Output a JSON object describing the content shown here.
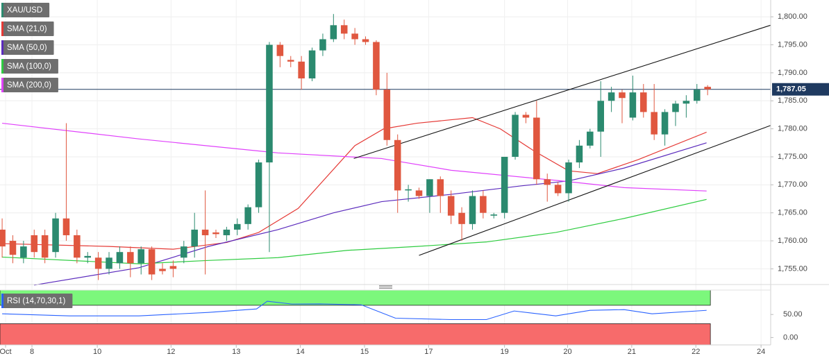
{
  "chart_data": {
    "type": "candlestick",
    "xlim": [
      -0.2,
      71.9
    ],
    "xticks": [
      {
        "value": 0.32,
        "label": "Oct"
      },
      {
        "value": 2.79,
        "label": "8"
      },
      {
        "value": 8.9,
        "label": "10"
      },
      {
        "value": 15.8,
        "label": "12"
      },
      {
        "value": 21.9,
        "label": "13"
      },
      {
        "value": 27.9,
        "label": "14"
      },
      {
        "value": 33.9,
        "label": "15"
      },
      {
        "value": 39.9,
        "label": "17"
      },
      {
        "value": 47.0,
        "label": "19"
      },
      {
        "value": 52.9,
        "label": "20"
      },
      {
        "value": 58.9,
        "label": "21"
      },
      {
        "value": 64.9,
        "label": "22"
      },
      {
        "value": 71.0,
        "label": "24"
      }
    ],
    "ylim": [
      1752.2,
      1803
    ],
    "yticks": [
      {
        "value": 1755,
        "label": "1,755.00"
      },
      {
        "value": 1760,
        "label": "1,760.00"
      },
      {
        "value": 1765,
        "label": "1,765.00"
      },
      {
        "value": 1770,
        "label": "1,770.00"
      },
      {
        "value": 1775,
        "label": "1,775.00"
      },
      {
        "value": 1780,
        "label": "1,780.00"
      },
      {
        "value": 1785,
        "label": "1,785.00"
      },
      {
        "value": 1790,
        "label": "1,790.00"
      },
      {
        "value": 1795,
        "label": "1,795.00"
      },
      {
        "value": 1800,
        "label": "1,800.00"
      }
    ],
    "grid": true,
    "candles": {
      "name": "XAU/USD",
      "color": "#2b8a6f",
      "up_color": "#2b8a6f",
      "down_color": "#e0573f",
      "x": [
        0,
        1,
        2,
        3,
        4,
        5,
        6,
        7,
        8,
        9,
        10,
        11,
        12,
        13,
        14,
        15,
        16,
        17,
        18,
        19,
        20,
        21,
        22,
        23,
        24,
        25,
        26,
        27,
        28,
        29,
        30,
        31,
        32,
        33,
        34,
        35,
        36,
        37,
        38,
        39,
        40,
        41,
        42,
        43,
        44,
        45,
        46,
        47,
        48,
        49,
        50,
        51,
        52,
        53,
        54,
        55,
        56,
        57,
        58,
        59,
        60,
        61,
        62,
        63,
        64,
        65,
        66
      ],
      "open": [
        1762,
        1760,
        1757,
        1761,
        1761,
        1758,
        1764,
        1761,
        1757,
        1757,
        1755,
        1756,
        1758,
        1756,
        1758.5,
        1755,
        1755.5,
        1757,
        1759,
        1762,
        1761.5,
        1761,
        1762,
        1763,
        1766,
        1774,
        1795,
        1792.3,
        1792,
        1789,
        1794,
        1796,
        1798.5,
        1797,
        1796,
        1795.5,
        1787,
        1778,
        1769,
        1769,
        1768,
        1771,
        1768,
        1765,
        1763,
        1768,
        1764.5,
        1765,
        1775,
        1782.5,
        1782,
        1771,
        1770,
        1768.5,
        1774,
        1777,
        1779.5,
        1785,
        1786.5,
        1782,
        1786.5,
        1783,
        1779,
        1783,
        1784.5,
        1785,
        1787.5
      ],
      "high": [
        1764,
        1761,
        1760,
        1762,
        1762,
        1765,
        1781,
        1762,
        1758,
        1758,
        1758,
        1759,
        1759,
        1759,
        1759,
        1756,
        1756.5,
        1760,
        1765,
        1769,
        1762,
        1762.5,
        1764,
        1766.5,
        1774.5,
        1795.5,
        1795.5,
        1793,
        1793,
        1794.5,
        1797,
        1800.5,
        1799.5,
        1798,
        1796.5,
        1795.8,
        1790,
        1779,
        1770,
        1769.5,
        1771,
        1771.5,
        1769,
        1766,
        1769,
        1769,
        1765,
        1775,
        1783,
        1783,
        1785,
        1772,
        1770.5,
        1774.5,
        1778,
        1780,
        1788.5,
        1787.5,
        1787,
        1789.5,
        1788,
        1788,
        1783.5,
        1785,
        1786,
        1788,
        1787.8
      ],
      "low": [
        1757,
        1756,
        1756,
        1757,
        1756,
        1757,
        1760,
        1756,
        1756,
        1753,
        1754,
        1755,
        1753.5,
        1754,
        1753,
        1754,
        1753.5,
        1756,
        1757,
        1754,
        1760.5,
        1760,
        1761,
        1762,
        1765,
        1758,
        1791,
        1791,
        1787,
        1788.5,
        1793,
        1795.5,
        1796,
        1795,
        1795,
        1786,
        1777,
        1765,
        1767,
        1767.5,
        1765,
        1765,
        1763,
        1760,
        1762,
        1764,
        1764,
        1764,
        1774.5,
        1781,
        1770,
        1767,
        1768,
        1767,
        1773,
        1776.5,
        1775,
        1783,
        1781,
        1781.5,
        1782,
        1778,
        1777,
        1780.5,
        1782,
        1784.5,
        1786
      ],
      "close": [
        1759,
        1757.5,
        1759,
        1758,
        1757,
        1764,
        1761,
        1757,
        1757.3,
        1755,
        1757,
        1758,
        1756,
        1758.5,
        1754,
        1754.6,
        1755,
        1759,
        1762,
        1761,
        1761.2,
        1762,
        1763,
        1766,
        1774,
        1795,
        1793,
        1792,
        1789,
        1794,
        1796,
        1798.5,
        1797,
        1796,
        1795.5,
        1787,
        1778,
        1769,
        1769.2,
        1768,
        1771,
        1768,
        1764.5,
        1763,
        1768,
        1765,
        1764.7,
        1775,
        1782.5,
        1782,
        1771,
        1770,
        1768.5,
        1774,
        1777,
        1779.5,
        1785,
        1786.5,
        1785.5,
        1786.5,
        1783,
        1779,
        1783,
        1784.5,
        1785,
        1787,
        1787.05
      ]
    },
    "series": [
      {
        "name": "SMA (21,0)",
        "color": "#e53935",
        "x": [
          0,
          10,
          16,
          21,
          24,
          27.7,
          33,
          35.7,
          38.8,
          44,
          46.6,
          49.8,
          53,
          55.7,
          59.5,
          65.9
        ],
        "values": [
          1759.5,
          1759,
          1758.5,
          1759.7,
          1761.5,
          1765.8,
          1777,
          1780,
          1781,
          1782,
          1780,
          1776,
          1772.5,
          1772,
          1774.5,
          1779.4
        ]
      },
      {
        "name": "SMA (50,0)",
        "color": "#5b2bbd",
        "x": [
          3,
          12.8,
          19.3,
          25.8,
          31,
          35.5,
          42,
          48.5,
          53,
          58.2,
          65.9
        ],
        "values": [
          1752.1,
          1755.2,
          1759,
          1762,
          1765,
          1767,
          1768.3,
          1769.8,
          1770.7,
          1773,
          1777.5
        ]
      },
      {
        "name": "SMA (100,0)",
        "color": "#2ecc40",
        "x": [
          0,
          12.8,
          19.3,
          25.8,
          32.3,
          38.8,
          45.3,
          51.8,
          58.2,
          65.9
        ],
        "values": [
          1757.1,
          1755.9,
          1756.5,
          1757,
          1758.3,
          1759,
          1759.8,
          1761.5,
          1764,
          1767.4
        ]
      },
      {
        "name": "SMA (200,0)",
        "color": "#e040fb",
        "x": [
          0,
          12.8,
          25.8,
          35.5,
          42,
          51.8,
          58.2,
          65.9
        ],
        "values": [
          1781,
          1778.2,
          1775.7,
          1774.7,
          1772.6,
          1770.8,
          1769.5,
          1768.9
        ]
      }
    ],
    "trendlines": [
      {
        "color": "#111111",
        "x": [
          32.9,
          71.9
        ],
        "values": [
          1774.7,
          1798.5
        ]
      },
      {
        "color": "#111111",
        "x": [
          39,
          71.9
        ],
        "values": [
          1757.4,
          1780.6
        ]
      }
    ],
    "last_price": {
      "value": 1787.05,
      "label": "1,787.05",
      "color": "#1f3a60"
    },
    "rsi": {
      "name": "RSI (14,70,30,1)",
      "color": "#2962ff",
      "ylim": [
        -16,
        103
      ],
      "yticks": [
        {
          "value": 50,
          "label": "50.00"
        },
        {
          "value": 0,
          "label": "0.00"
        }
      ],
      "overbought": 70,
      "oversold": 30,
      "overbought_color": "#7cf77c",
      "oversold_color": "#f76b6b",
      "x": [
        0,
        6.3,
        12.8,
        19.3,
        23.8,
        24.8,
        27.1,
        29.7,
        33.6,
        36.8,
        42,
        45.3,
        47.9,
        51.8,
        55,
        58.2,
        60.8,
        65.9
      ],
      "values": [
        51.5,
        47,
        47,
        54.5,
        62,
        78.8,
        72.7,
        73,
        71,
        42,
        39,
        39,
        57.6,
        47,
        59,
        60.6,
        51.5,
        59
      ]
    }
  }
}
